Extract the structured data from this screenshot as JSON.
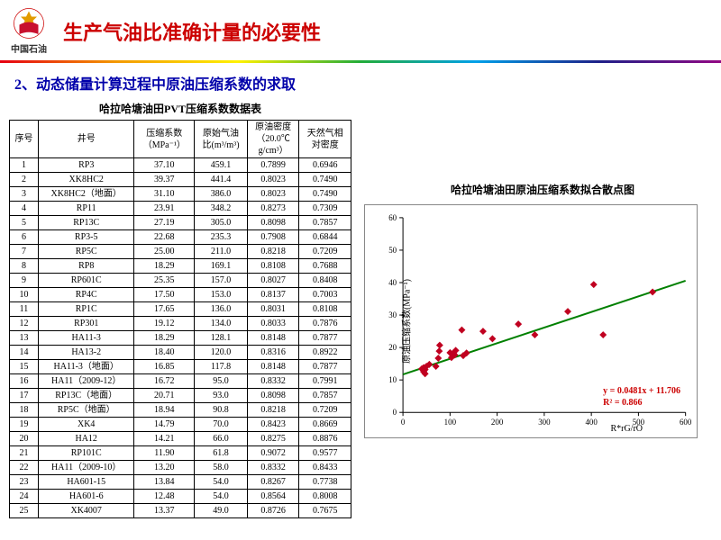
{
  "header": {
    "logo_label": "中国石油",
    "main_title": "生产气油比准确计量的必要性"
  },
  "subtitle": "2、动态储量计算过程中原油压缩系数的求取",
  "table": {
    "title": "哈拉哈塘油田PVT压缩系数数据表",
    "columns": [
      "序号",
      "井号",
      "压缩系数\n（MPa⁻¹）",
      "原始气油\n比(m³/m³)",
      "原油密度\n（20.0℃\ng/cm³）",
      "天然气相\n对密度"
    ],
    "rows": [
      [
        "1",
        "RP3",
        "37.10",
        "459.1",
        "0.7899",
        "0.6946"
      ],
      [
        "2",
        "XK8HC2",
        "39.37",
        "441.4",
        "0.8023",
        "0.7490"
      ],
      [
        "3",
        "XK8HC2（地面）",
        "31.10",
        "386.0",
        "0.8023",
        "0.7490"
      ],
      [
        "4",
        "RP11",
        "23.91",
        "348.2",
        "0.8273",
        "0.7309"
      ],
      [
        "5",
        "RP13C",
        "27.19",
        "305.0",
        "0.8098",
        "0.7857"
      ],
      [
        "6",
        "RP3-5",
        "22.68",
        "235.3",
        "0.7908",
        "0.6844"
      ],
      [
        "7",
        "RP5C",
        "25.00",
        "211.0",
        "0.8218",
        "0.7209"
      ],
      [
        "8",
        "RP8",
        "18.29",
        "169.1",
        "0.8108",
        "0.7688"
      ],
      [
        "9",
        "RP601C",
        "25.35",
        "157.0",
        "0.8027",
        "0.8408"
      ],
      [
        "10",
        "RP4C",
        "17.50",
        "153.0",
        "0.8137",
        "0.7003"
      ],
      [
        "11",
        "RP1C",
        "17.65",
        "136.0",
        "0.8031",
        "0.8108"
      ],
      [
        "12",
        "RP301",
        "19.12",
        "134.0",
        "0.8033",
        "0.7876"
      ],
      [
        "13",
        "HA11-3",
        "18.29",
        "128.1",
        "0.8148",
        "0.7877"
      ],
      [
        "14",
        "HA13-2",
        "18.40",
        "120.0",
        "0.8316",
        "0.8922"
      ],
      [
        "15",
        "HA11-3（地面）",
        "16.85",
        "117.8",
        "0.8148",
        "0.7877"
      ],
      [
        "16",
        "HA11（2009-12）",
        "16.72",
        "95.0",
        "0.8332",
        "0.7991"
      ],
      [
        "17",
        "RP13C（地面）",
        "20.71",
        "93.0",
        "0.8098",
        "0.7857"
      ],
      [
        "18",
        "RP5C（地面）",
        "18.94",
        "90.8",
        "0.8218",
        "0.7209"
      ],
      [
        "19",
        "XK4",
        "14.79",
        "70.0",
        "0.8423",
        "0.8669"
      ],
      [
        "20",
        "HA12",
        "14.21",
        "66.0",
        "0.8275",
        "0.8876"
      ],
      [
        "21",
        "RP101C",
        "11.90",
        "61.8",
        "0.9072",
        "0.9577"
      ],
      [
        "22",
        "HA11（2009-10）",
        "13.20",
        "58.0",
        "0.8332",
        "0.8433"
      ],
      [
        "23",
        "HA601-15",
        "13.84",
        "54.0",
        "0.8267",
        "0.7738"
      ],
      [
        "24",
        "HA601-6",
        "12.48",
        "54.0",
        "0.8564",
        "0.8008"
      ],
      [
        "25",
        "XK4007",
        "13.37",
        "49.0",
        "0.8726",
        "0.7675"
      ]
    ]
  },
  "chart": {
    "title": "哈拉哈塘油田原油压缩系数拟合散点图",
    "type": "scatter",
    "xlabel": "R*rG/rO",
    "ylabel": "原油压缩系数(MPa⁻¹)",
    "xlim": [
      0,
      600
    ],
    "xtick_step": 100,
    "ylim": [
      0,
      60
    ],
    "ytick_step": 10,
    "marker_color": "#c00020",
    "marker_size": 4,
    "line_color": "#008000",
    "line_width": 2,
    "background_color": "#ffffff",
    "border_color": "#888888",
    "tick_fontsize": 9,
    "equation": "y = 0.0481x + 11.706",
    "r2": "R² = 0.866",
    "equation_color": "#c00020",
    "fit_line": {
      "x1": 0,
      "y1": 11.706,
      "x2": 600,
      "y2": 40.566
    },
    "points": [
      [
        40,
        13.4
      ],
      [
        44,
        12.5
      ],
      [
        44,
        13.8
      ],
      [
        47,
        11.9
      ],
      [
        47,
        13.2
      ],
      [
        50,
        14.2
      ],
      [
        56,
        14.8
      ],
      [
        70,
        14.2
      ],
      [
        75,
        16.7
      ],
      [
        77,
        18.9
      ],
      [
        78,
        20.7
      ],
      [
        100,
        18.4
      ],
      [
        103,
        16.9
      ],
      [
        107,
        18.3
      ],
      [
        110,
        17.7
      ],
      [
        112,
        19.1
      ],
      [
        125,
        25.4
      ],
      [
        128,
        17.5
      ],
      [
        135,
        18.3
      ],
      [
        170,
        25.0
      ],
      [
        190,
        22.7
      ],
      [
        245,
        27.2
      ],
      [
        280,
        23.9
      ],
      [
        350,
        31.1
      ],
      [
        405,
        39.4
      ],
      [
        425,
        23.9
      ],
      [
        530,
        37.1
      ]
    ]
  }
}
